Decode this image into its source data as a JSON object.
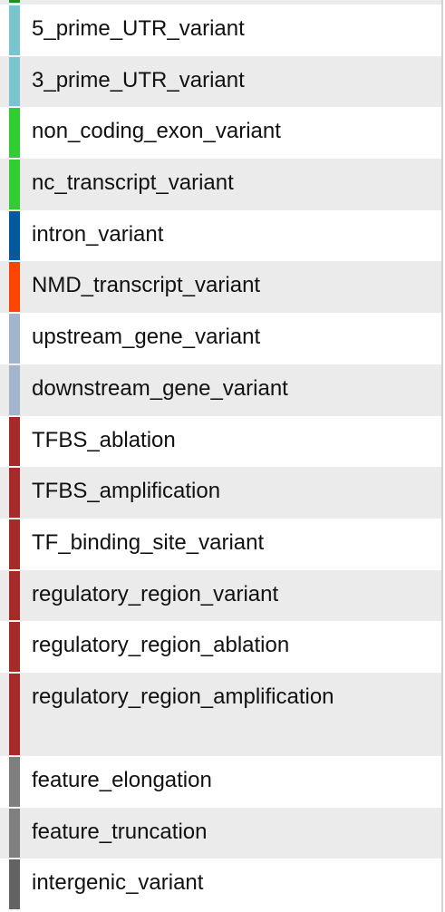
{
  "rows": [
    {
      "label": "5_prime_UTR_variant",
      "color": "#7ac5cd"
    },
    {
      "label": "3_prime_UTR_variant",
      "color": "#7ac5cd"
    },
    {
      "label": "non_coding_exon_variant",
      "color": "#32cd32"
    },
    {
      "label": "nc_transcript_variant",
      "color": "#32cd32"
    },
    {
      "label": "intron_variant",
      "color": "#02599c"
    },
    {
      "label": "NMD_transcript_variant",
      "color": "#ff4500"
    },
    {
      "label": "upstream_gene_variant",
      "color": "#a2b5cd"
    },
    {
      "label": "downstream_gene_variant",
      "color": "#a2b5cd"
    },
    {
      "label": "TFBS_ablation",
      "color": "#a52a2a"
    },
    {
      "label": "TFBS_amplification",
      "color": "#a52a2a"
    },
    {
      "label": "TF_binding_site_variant",
      "color": "#a52a2a"
    },
    {
      "label": "regulatory_region_variant",
      "color": "#a52a2a"
    },
    {
      "label": "regulatory_region_ablation",
      "color": "#a52a2a"
    },
    {
      "label": "regulatory_region_amplification",
      "color": "#a52a2a"
    },
    {
      "label": "feature_elongation",
      "color": "#7f7f7f"
    },
    {
      "label": "feature_truncation",
      "color": "#7f7f7f"
    },
    {
      "label": "intergenic_variant",
      "color": "#636363"
    }
  ]
}
